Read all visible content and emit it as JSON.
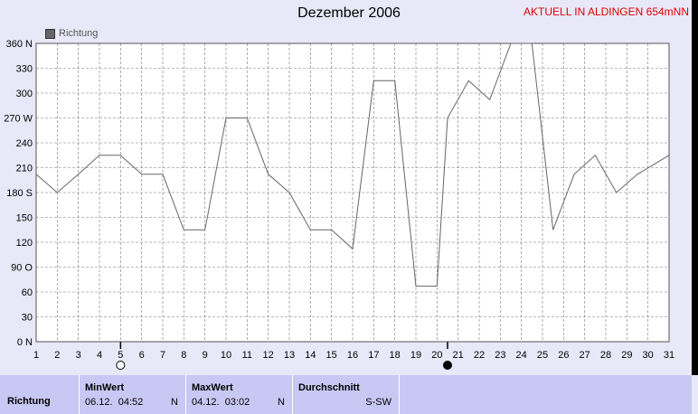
{
  "header": {
    "title": "Dezember 2006",
    "aktuell": "AKTUELL IN ALDINGEN 654mNN"
  },
  "legend": {
    "label": "Richtung"
  },
  "chart_data": {
    "type": "line",
    "title": "Dezember 2006",
    "x": [
      1,
      2,
      3,
      4,
      5,
      6,
      7,
      8,
      9,
      10,
      11,
      12,
      13,
      14,
      15,
      16,
      17,
      18,
      19,
      20,
      21,
      22,
      23,
      24,
      25,
      26,
      27,
      28,
      29,
      30,
      31
    ],
    "x_ticks": [
      "1",
      "2",
      "3",
      "4",
      "5",
      "6",
      "7",
      "8",
      "9",
      "10",
      "11",
      "12",
      "13",
      "14",
      "15",
      "16",
      "17",
      "18",
      "19",
      "20",
      "21",
      "22",
      "23",
      "24",
      "25",
      "26",
      "27",
      "28",
      "29",
      "30",
      "31"
    ],
    "y_ticks": [
      "0 N",
      "30",
      "60",
      "90 O",
      "120",
      "150",
      "180 S",
      "210",
      "240",
      "270 W",
      "300",
      "330",
      "360 N"
    ],
    "ylim": [
      0,
      360
    ],
    "xlim": [
      1,
      31
    ],
    "grid": true,
    "series": [
      {
        "name": "Richtung",
        "color": "#666666",
        "points": [
          [
            1,
            202
          ],
          [
            2,
            180
          ],
          [
            3,
            202
          ],
          [
            4,
            225
          ],
          [
            5,
            225
          ],
          [
            6,
            202
          ],
          [
            7,
            202
          ],
          [
            8,
            135
          ],
          [
            9,
            135
          ],
          [
            10,
            270
          ],
          [
            11,
            270
          ],
          [
            12,
            202
          ],
          [
            13,
            180
          ],
          [
            14,
            135
          ],
          [
            15,
            135
          ],
          [
            16,
            112
          ],
          [
            17,
            315
          ],
          [
            18,
            315
          ],
          [
            19,
            67
          ],
          [
            20,
            67
          ],
          [
            20.5,
            270
          ],
          [
            21.5,
            315
          ],
          [
            22.5,
            292
          ],
          [
            23.5,
            360
          ],
          [
            24.5,
            360
          ],
          [
            25.5,
            135
          ],
          [
            26.5,
            202
          ],
          [
            27.5,
            225
          ],
          [
            28.5,
            180
          ],
          [
            29.5,
            202
          ],
          [
            31,
            225
          ]
        ]
      }
    ],
    "moon_markers": [
      {
        "x": 5,
        "icon": "full-moon-icon"
      },
      {
        "x": 20.5,
        "icon": "new-moon-icon"
      }
    ]
  },
  "bottom": {
    "row_label": "Richtung",
    "min": {
      "header": "MinWert",
      "date": "06.12.",
      "time": "04:52",
      "dir": "N"
    },
    "max": {
      "header": "MaxWert",
      "date": "04.12.",
      "time": "03:02",
      "dir": "N"
    },
    "avg": {
      "header": "Durchschnitt",
      "value": "S-SW"
    }
  }
}
